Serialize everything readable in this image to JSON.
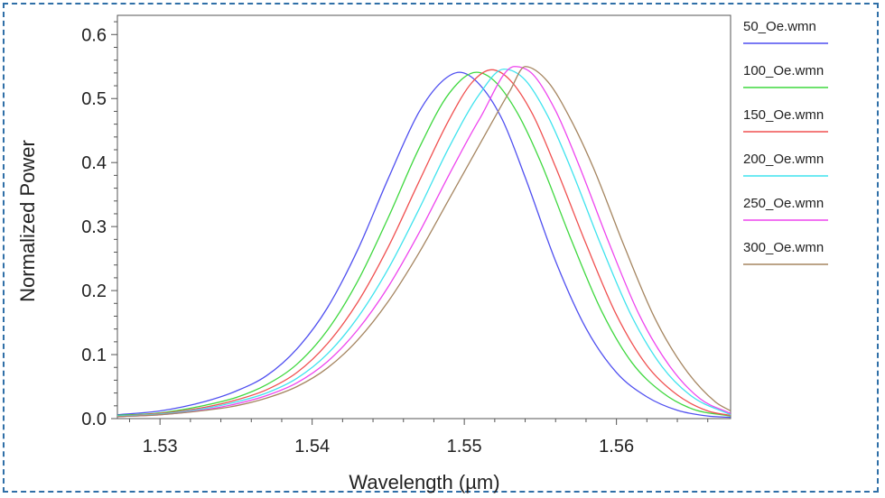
{
  "chart_data": {
    "type": "line",
    "title": "",
    "xlabel": "Wavelength (µm)",
    "ylabel": "Normalized Power",
    "xlim": [
      1.5272,
      1.5675
    ],
    "ylim": [
      0,
      0.63
    ],
    "xticks": [
      "1.53",
      "1.54",
      "1.55",
      "1.56"
    ],
    "xtick_values": [
      1.53,
      1.54,
      1.55,
      1.56
    ],
    "yticks": [
      "0.0",
      "0.1",
      "0.2",
      "0.3",
      "0.4",
      "0.5",
      "0.6"
    ],
    "ytick_values": [
      0.0,
      0.1,
      0.2,
      0.3,
      0.4,
      0.5,
      0.6
    ],
    "grid": false,
    "legend_position": "right",
    "curve_shape": {
      "peaks": [
        1.5497,
        1.5508,
        1.5518,
        1.5526,
        1.5533,
        1.554
      ],
      "peak_values": [
        0.541,
        0.541,
        0.545,
        0.546,
        0.55,
        0.55
      ]
    },
    "series": [
      {
        "name": "50_Oe.wmn",
        "color": "#4f4ff0",
        "x": [
          1.5272,
          1.53,
          1.533,
          1.535,
          1.537,
          1.539,
          1.541,
          1.543,
          1.545,
          1.547,
          1.5485,
          1.5497,
          1.551,
          1.5525,
          1.554,
          1.556,
          1.558,
          1.56,
          1.562,
          1.564,
          1.566,
          1.5675
        ],
        "y": [
          0.006,
          0.012,
          0.027,
          0.043,
          0.067,
          0.109,
          0.173,
          0.264,
          0.375,
          0.478,
          0.526,
          0.541,
          0.522,
          0.467,
          0.377,
          0.246,
          0.141,
          0.072,
          0.034,
          0.013,
          0.004,
          0.002
        ]
      },
      {
        "name": "100_Oe.wmn",
        "color": "#3fd83f",
        "x": [
          1.5272,
          1.53,
          1.533,
          1.535,
          1.537,
          1.539,
          1.541,
          1.543,
          1.545,
          1.547,
          1.549,
          1.5508,
          1.552,
          1.5535,
          1.555,
          1.557,
          1.559,
          1.561,
          1.563,
          1.565,
          1.5675
        ],
        "y": [
          0.005,
          0.009,
          0.021,
          0.033,
          0.053,
          0.085,
          0.138,
          0.215,
          0.314,
          0.421,
          0.508,
          0.541,
          0.527,
          0.477,
          0.402,
          0.281,
          0.169,
          0.088,
          0.041,
          0.015,
          0.004
        ]
      },
      {
        "name": "150_Oe.wmn",
        "color": "#f05050",
        "x": [
          1.5272,
          1.53,
          1.533,
          1.535,
          1.537,
          1.539,
          1.541,
          1.543,
          1.545,
          1.547,
          1.549,
          1.5505,
          1.5518,
          1.553,
          1.5545,
          1.556,
          1.558,
          1.56,
          1.562,
          1.564,
          1.566,
          1.5675
        ],
        "y": [
          0.004,
          0.008,
          0.018,
          0.029,
          0.045,
          0.072,
          0.117,
          0.182,
          0.268,
          0.369,
          0.467,
          0.525,
          0.545,
          0.529,
          0.475,
          0.393,
          0.273,
          0.162,
          0.083,
          0.037,
          0.012,
          0.005
        ]
      },
      {
        "name": "200_Oe.wmn",
        "color": "#3fe3ee",
        "x": [
          1.5272,
          1.53,
          1.533,
          1.535,
          1.537,
          1.539,
          1.541,
          1.543,
          1.545,
          1.547,
          1.549,
          1.551,
          1.5526,
          1.554,
          1.5555,
          1.557,
          1.559,
          1.561,
          1.563,
          1.565,
          1.5675
        ],
        "y": [
          0.004,
          0.007,
          0.016,
          0.026,
          0.04,
          0.063,
          0.101,
          0.158,
          0.234,
          0.326,
          0.424,
          0.507,
          0.546,
          0.529,
          0.472,
          0.391,
          0.27,
          0.16,
          0.081,
          0.034,
          0.006
        ]
      },
      {
        "name": "250_Oe.wmn",
        "color": "#ee45ee",
        "x": [
          1.5272,
          1.53,
          1.533,
          1.535,
          1.537,
          1.539,
          1.541,
          1.543,
          1.545,
          1.547,
          1.549,
          1.551,
          1.5533,
          1.5545,
          1.556,
          1.5575,
          1.5595,
          1.5615,
          1.5635,
          1.5655,
          1.5675
        ],
        "y": [
          0.003,
          0.006,
          0.014,
          0.023,
          0.036,
          0.056,
          0.089,
          0.139,
          0.206,
          0.289,
          0.381,
          0.468,
          0.55,
          0.538,
          0.481,
          0.398,
          0.275,
          0.162,
          0.082,
          0.031,
          0.008
        ]
      },
      {
        "name": "300_Oe.wmn",
        "color": "#a58560",
        "x": [
          1.5272,
          1.53,
          1.533,
          1.535,
          1.537,
          1.539,
          1.541,
          1.543,
          1.545,
          1.547,
          1.549,
          1.551,
          1.553,
          1.554,
          1.5555,
          1.557,
          1.5585,
          1.5605,
          1.5625,
          1.5645,
          1.5665,
          1.5675
        ],
        "y": [
          0.003,
          0.006,
          0.013,
          0.02,
          0.032,
          0.05,
          0.079,
          0.123,
          0.183,
          0.258,
          0.343,
          0.428,
          0.512,
          0.55,
          0.526,
          0.467,
          0.391,
          0.27,
          0.158,
          0.078,
          0.026,
          0.012
        ]
      }
    ]
  }
}
